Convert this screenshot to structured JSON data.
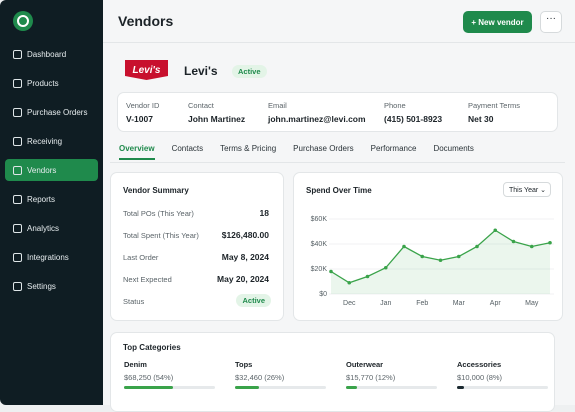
{
  "sidebar": {
    "nav": [
      "Dashboard",
      "Products",
      "Purchase Orders",
      "Receiving",
      "Vendors",
      "Reports",
      "Analytics",
      "Integrations",
      "Settings"
    ],
    "active": 4
  },
  "header": {
    "title": "Vendors",
    "button": "+ New vendor"
  },
  "vendor": {
    "logo": "Levi's",
    "name": "Levi's",
    "status": "Active",
    "fields": [
      {
        "label": "Vendor ID",
        "value": "V-1007"
      },
      {
        "label": "Contact",
        "value": "John Martinez"
      },
      {
        "label": "Email",
        "value": "john.martinez@levi.com"
      },
      {
        "label": "Phone",
        "value": "(415) 501-8923"
      },
      {
        "label": "Payment Terms",
        "value": "Net 30"
      }
    ]
  },
  "tabs": {
    "items": [
      "Overview",
      "Contacts",
      "Terms & Pricing",
      "Purchase Orders",
      "Performance",
      "Documents"
    ],
    "active": 0
  },
  "summary": {
    "title": "Vendor Summary",
    "rows": [
      {
        "label": "Total POs (This Year)",
        "value": "18"
      },
      {
        "label": "Total Spent (This Year)",
        "value": "$126,480.00"
      },
      {
        "label": "Last Order",
        "value": "May 8, 2024"
      },
      {
        "label": "Next Expected",
        "value": "May 20, 2024"
      }
    ],
    "status": {
      "label": "Status",
      "value": "Active"
    }
  },
  "chart_data": {
    "type": "line",
    "title": "Spend Over Time",
    "period": "This Year",
    "categories": [
      null,
      "Dec",
      null,
      "Jan",
      null,
      "Feb",
      null,
      "Mar",
      null,
      "Apr",
      null,
      "May",
      null
    ],
    "values": [
      18000,
      9000,
      14000,
      21000,
      38000,
      30000,
      27000,
      30000,
      38000,
      51000,
      42000,
      38000,
      41000
    ],
    "color": "#3aa34a",
    "ylim": [
      0,
      60000
    ],
    "yticks": [
      {
        "value": 0,
        "label": "$0"
      },
      {
        "value": 20000,
        "label": "$20K"
      },
      {
        "value": 40000,
        "label": "$40K"
      },
      {
        "value": 60000,
        "label": "$60K"
      }
    ],
    "grid": true
  },
  "top_categories": {
    "title": "Top Categories",
    "items": [
      {
        "name": "Denim",
        "value": "$68,250 (54%)",
        "percent": 54,
        "color": "#3aa34a"
      },
      {
        "name": "Tops",
        "value": "$32,460 (26%)",
        "percent": 26,
        "color": "#3aa34a"
      },
      {
        "name": "Outerwear",
        "value": "$15,770 (12%)",
        "percent": 12,
        "color": "#3aa34a"
      },
      {
        "name": "Accessories",
        "value": "$10,000 (8%)",
        "percent": 8,
        "color": "#1c2a31"
      }
    ]
  }
}
